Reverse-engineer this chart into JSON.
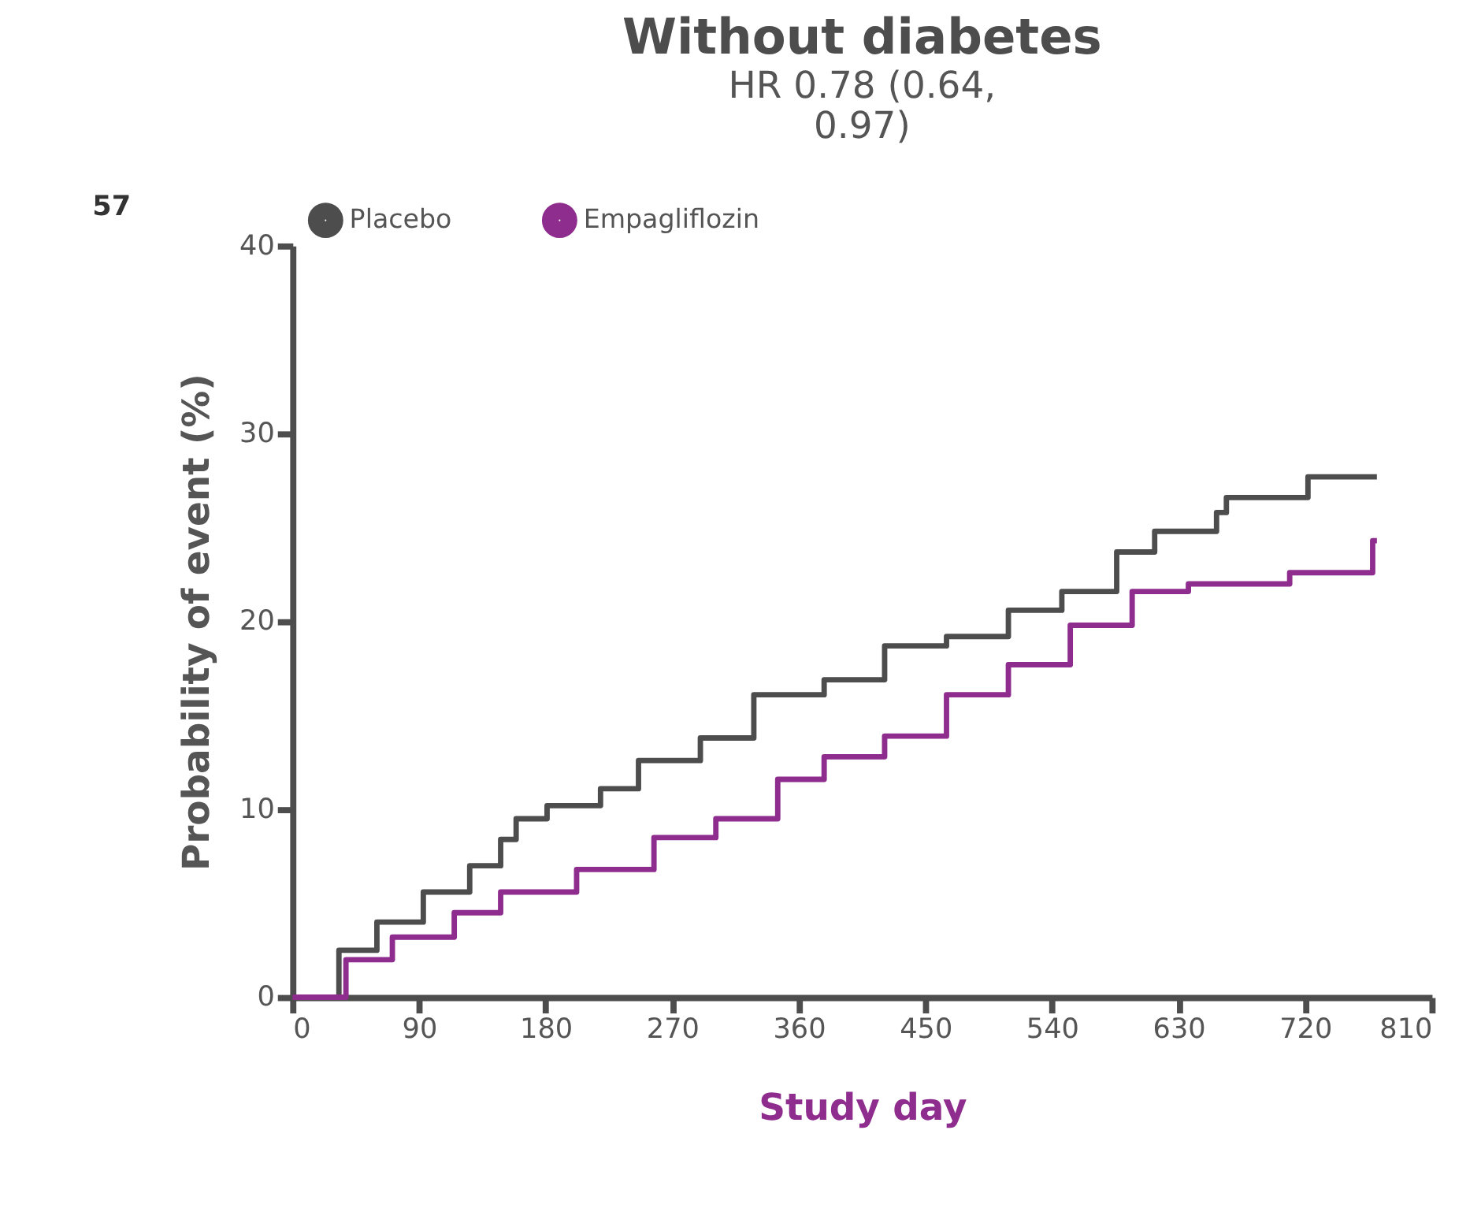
{
  "chart_data": {
    "type": "step",
    "title": "Without diabetes",
    "subtitle": "HR 0.78 (0.64,\n0.97)",
    "xlabel": "Study day",
    "ylabel": "Probability of event (%)",
    "annotations": [
      "57"
    ],
    "xlim": [
      0,
      810
    ],
    "xticks": [
      0,
      90,
      180,
      270,
      360,
      450,
      540,
      630,
      720,
      810
    ],
    "ylim": [
      0,
      40
    ],
    "yticks": [
      0,
      10,
      20,
      30,
      40
    ],
    "grid": false,
    "legend": "top left",
    "marker": "none",
    "line_style": "solid",
    "series": [
      {
        "name": "Placebo",
        "color": "#4d4d4d",
        "x": [
          0,
          33,
          60,
          93,
          126,
          148,
          159,
          181,
          219,
          246,
          290,
          328,
          378,
          421,
          465,
          509,
          547,
          586,
          613,
          657,
          664,
          722,
          771
        ],
        "values": [
          0,
          2.5,
          4.0,
          5.6,
          7.0,
          8.4,
          9.5,
          10.2,
          11.1,
          12.6,
          13.8,
          16.1,
          16.9,
          18.7,
          19.2,
          20.6,
          21.6,
          23.7,
          24.8,
          25.8,
          26.6,
          27.7,
          27.7
        ]
      },
      {
        "name": "Empagliflozin",
        "color": "#8e2d8e",
        "x": [
          0,
          38,
          71,
          115,
          148,
          202,
          257,
          301,
          345,
          378,
          421,
          465,
          509,
          553,
          597,
          637,
          709,
          768,
          771
        ],
        "values": [
          0,
          2.0,
          3.2,
          4.5,
          5.6,
          6.8,
          8.5,
          9.5,
          11.6,
          12.8,
          13.9,
          16.1,
          17.7,
          19.8,
          21.6,
          22.0,
          22.6,
          24.3,
          24.3
        ]
      }
    ]
  }
}
